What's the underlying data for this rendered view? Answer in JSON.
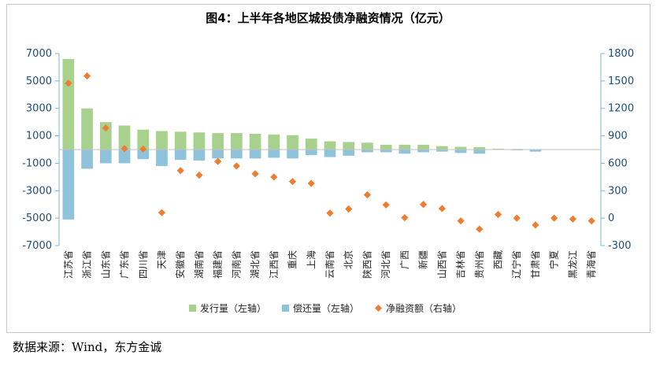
{
  "title": "图4：上半年各地区城投债净融资情况（亿元）",
  "source": "数据来源：Wind，东方金诚",
  "colors": {
    "issue": "#a9d18e",
    "repay": "#8fc3dc",
    "net": "#ed7d31",
    "axis": "#7fb4d0",
    "tick": "#1f4e79"
  },
  "chart_data": {
    "type": "bar",
    "title": "图4：上半年各地区城投债净融资情况（亿元）",
    "categories": [
      "江苏省",
      "浙江省",
      "山东省",
      "广东省",
      "四川省",
      "天津",
      "安徽省",
      "湖南省",
      "福建省",
      "河南省",
      "湖北省",
      "江西省",
      "重庆",
      "上海",
      "云南省",
      "北京",
      "陕西省",
      "河北省",
      "广西",
      "新疆",
      "山西省",
      "吉林省",
      "贵州省",
      "西藏",
      "辽宁省",
      "甘肃省",
      "宁夏",
      "黑龙江",
      "青海省"
    ],
    "left_axis": {
      "ylim": [
        -7000,
        7000
      ],
      "ticks": [
        7000,
        5000,
        3000,
        1000,
        -1000,
        -3000,
        -5000,
        -7000
      ]
    },
    "right_axis": {
      "ylim": [
        -300,
        1800
      ],
      "ticks": [
        1800,
        1500,
        1200,
        900,
        600,
        300,
        0,
        -300
      ]
    },
    "series": [
      {
        "name": "发行量（左轴）",
        "type": "bar",
        "axis": "left",
        "values": [
          6600,
          3000,
          2000,
          1750,
          1450,
          1350,
          1300,
          1250,
          1200,
          1200,
          1150,
          1100,
          1050,
          800,
          600,
          550,
          500,
          350,
          350,
          350,
          250,
          200,
          180,
          60,
          40,
          20,
          0,
          0,
          0
        ]
      },
      {
        "name": "偿还量（左轴）",
        "type": "bar",
        "axis": "left",
        "values": [
          -5100,
          -1400,
          -1000,
          -1000,
          -700,
          -1200,
          -750,
          -800,
          -650,
          -650,
          -650,
          -600,
          -650,
          -400,
          -550,
          -450,
          -200,
          -200,
          -300,
          -200,
          -150,
          -250,
          -300,
          0,
          -50,
          -150,
          0,
          0,
          0
        ]
      },
      {
        "name": "净融资额（右轴）",
        "type": "scatter",
        "axis": "right",
        "values": [
          1475,
          1555,
          985,
          760,
          755,
          60,
          520,
          470,
          620,
          570,
          485,
          450,
          400,
          380,
          55,
          100,
          255,
          145,
          5,
          150,
          105,
          -30,
          -120,
          40,
          0,
          -75,
          0,
          -10,
          -30
        ]
      }
    ],
    "legend": "bottom"
  }
}
